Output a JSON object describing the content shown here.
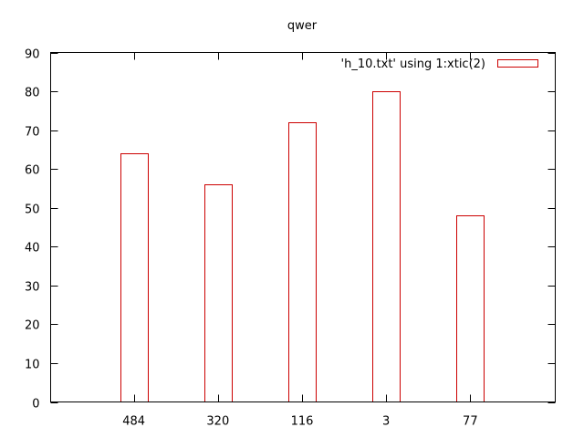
{
  "chart_data": {
    "type": "bar",
    "title": "qwer",
    "xlabel": "",
    "ylabel": "",
    "categories": [
      "484",
      "320",
      "116",
      "3",
      "77"
    ],
    "series": [
      {
        "name": "'h_10.txt' using 1:xtic(2)",
        "values": [
          64,
          56,
          72,
          80,
          48
        ],
        "color": "#cc0000"
      }
    ],
    "ylim": [
      0,
      90
    ],
    "yticks": [
      0,
      10,
      20,
      30,
      40,
      50,
      60,
      70,
      80,
      90
    ],
    "grid": false,
    "legend_position": "top-right"
  }
}
